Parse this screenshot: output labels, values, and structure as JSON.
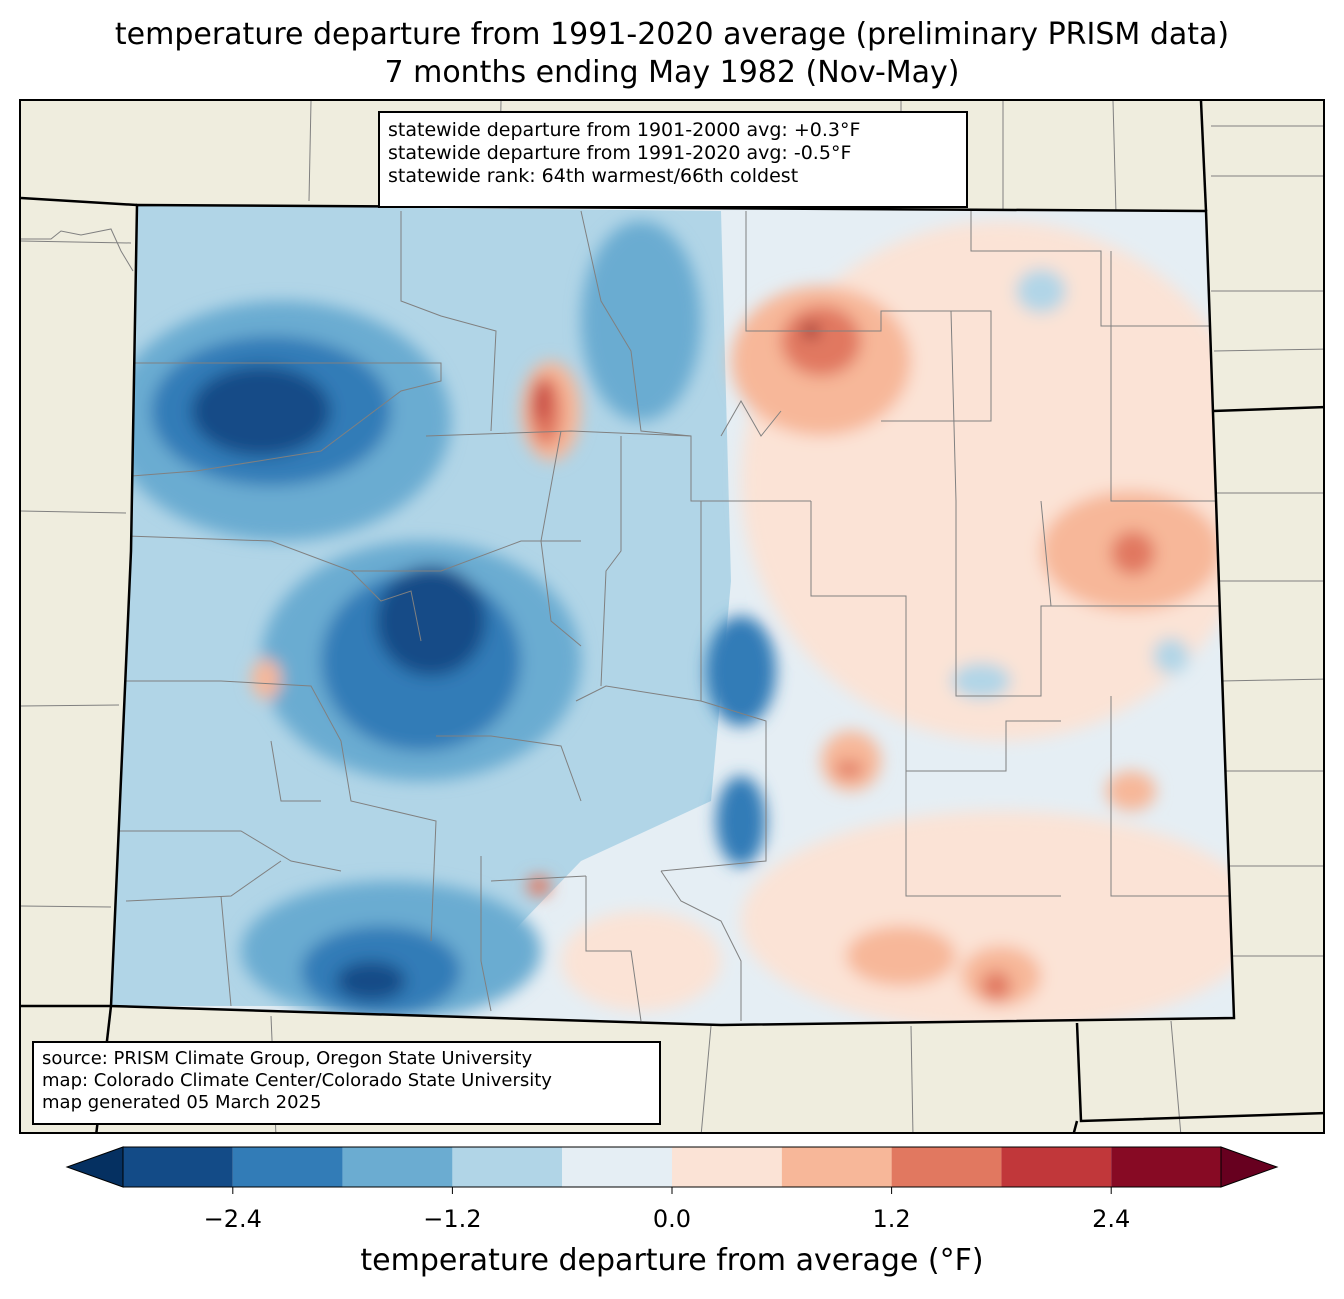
{
  "title_line1": "temperature departure from 1991-2020 average (preliminary PRISM data)",
  "title_line2": "7 months ending May 1982 (Nov-May)",
  "stats_box": {
    "line1": "statewide departure from 1901-2000 avg: +0.3°F",
    "line2": "statewide departure from 1991-2020 avg: -0.5°F",
    "line3": "statewide rank: 64th warmest/66th coldest"
  },
  "source_box": {
    "line1": "source: PRISM Climate Group, Oregon State University",
    "line2": "map: Colorado Climate Center/Colorado State University",
    "line3": "map generated 05 March 2025"
  },
  "colorbar": {
    "label": "temperature departure from average (°F)",
    "ticks": [
      "−2.4",
      "−1.2",
      "0.0",
      "1.2",
      "2.4"
    ],
    "tick_values": [
      -2.4,
      -1.2,
      0.0,
      1.2,
      2.4
    ],
    "bin_edges": [
      -3.0,
      -2.4,
      -1.8,
      -1.2,
      -0.6,
      0.0,
      0.6,
      1.2,
      1.8,
      2.4,
      3.0
    ],
    "colors": [
      "#67001f",
      "#134b87",
      "#327cb7",
      "#6bacd1",
      "#b1d5e7",
      "#e5eef4",
      "#fbe3d6",
      "#f7b799",
      "#e17860",
      "#c1373a",
      "#870a24",
      "#67001f"
    ],
    "under_color": "#053061",
    "over_color": "#67001f"
  },
  "map": {
    "land_color": "#efedde",
    "state_outline_color": "#000000",
    "county_line_color": "#808080"
  }
}
